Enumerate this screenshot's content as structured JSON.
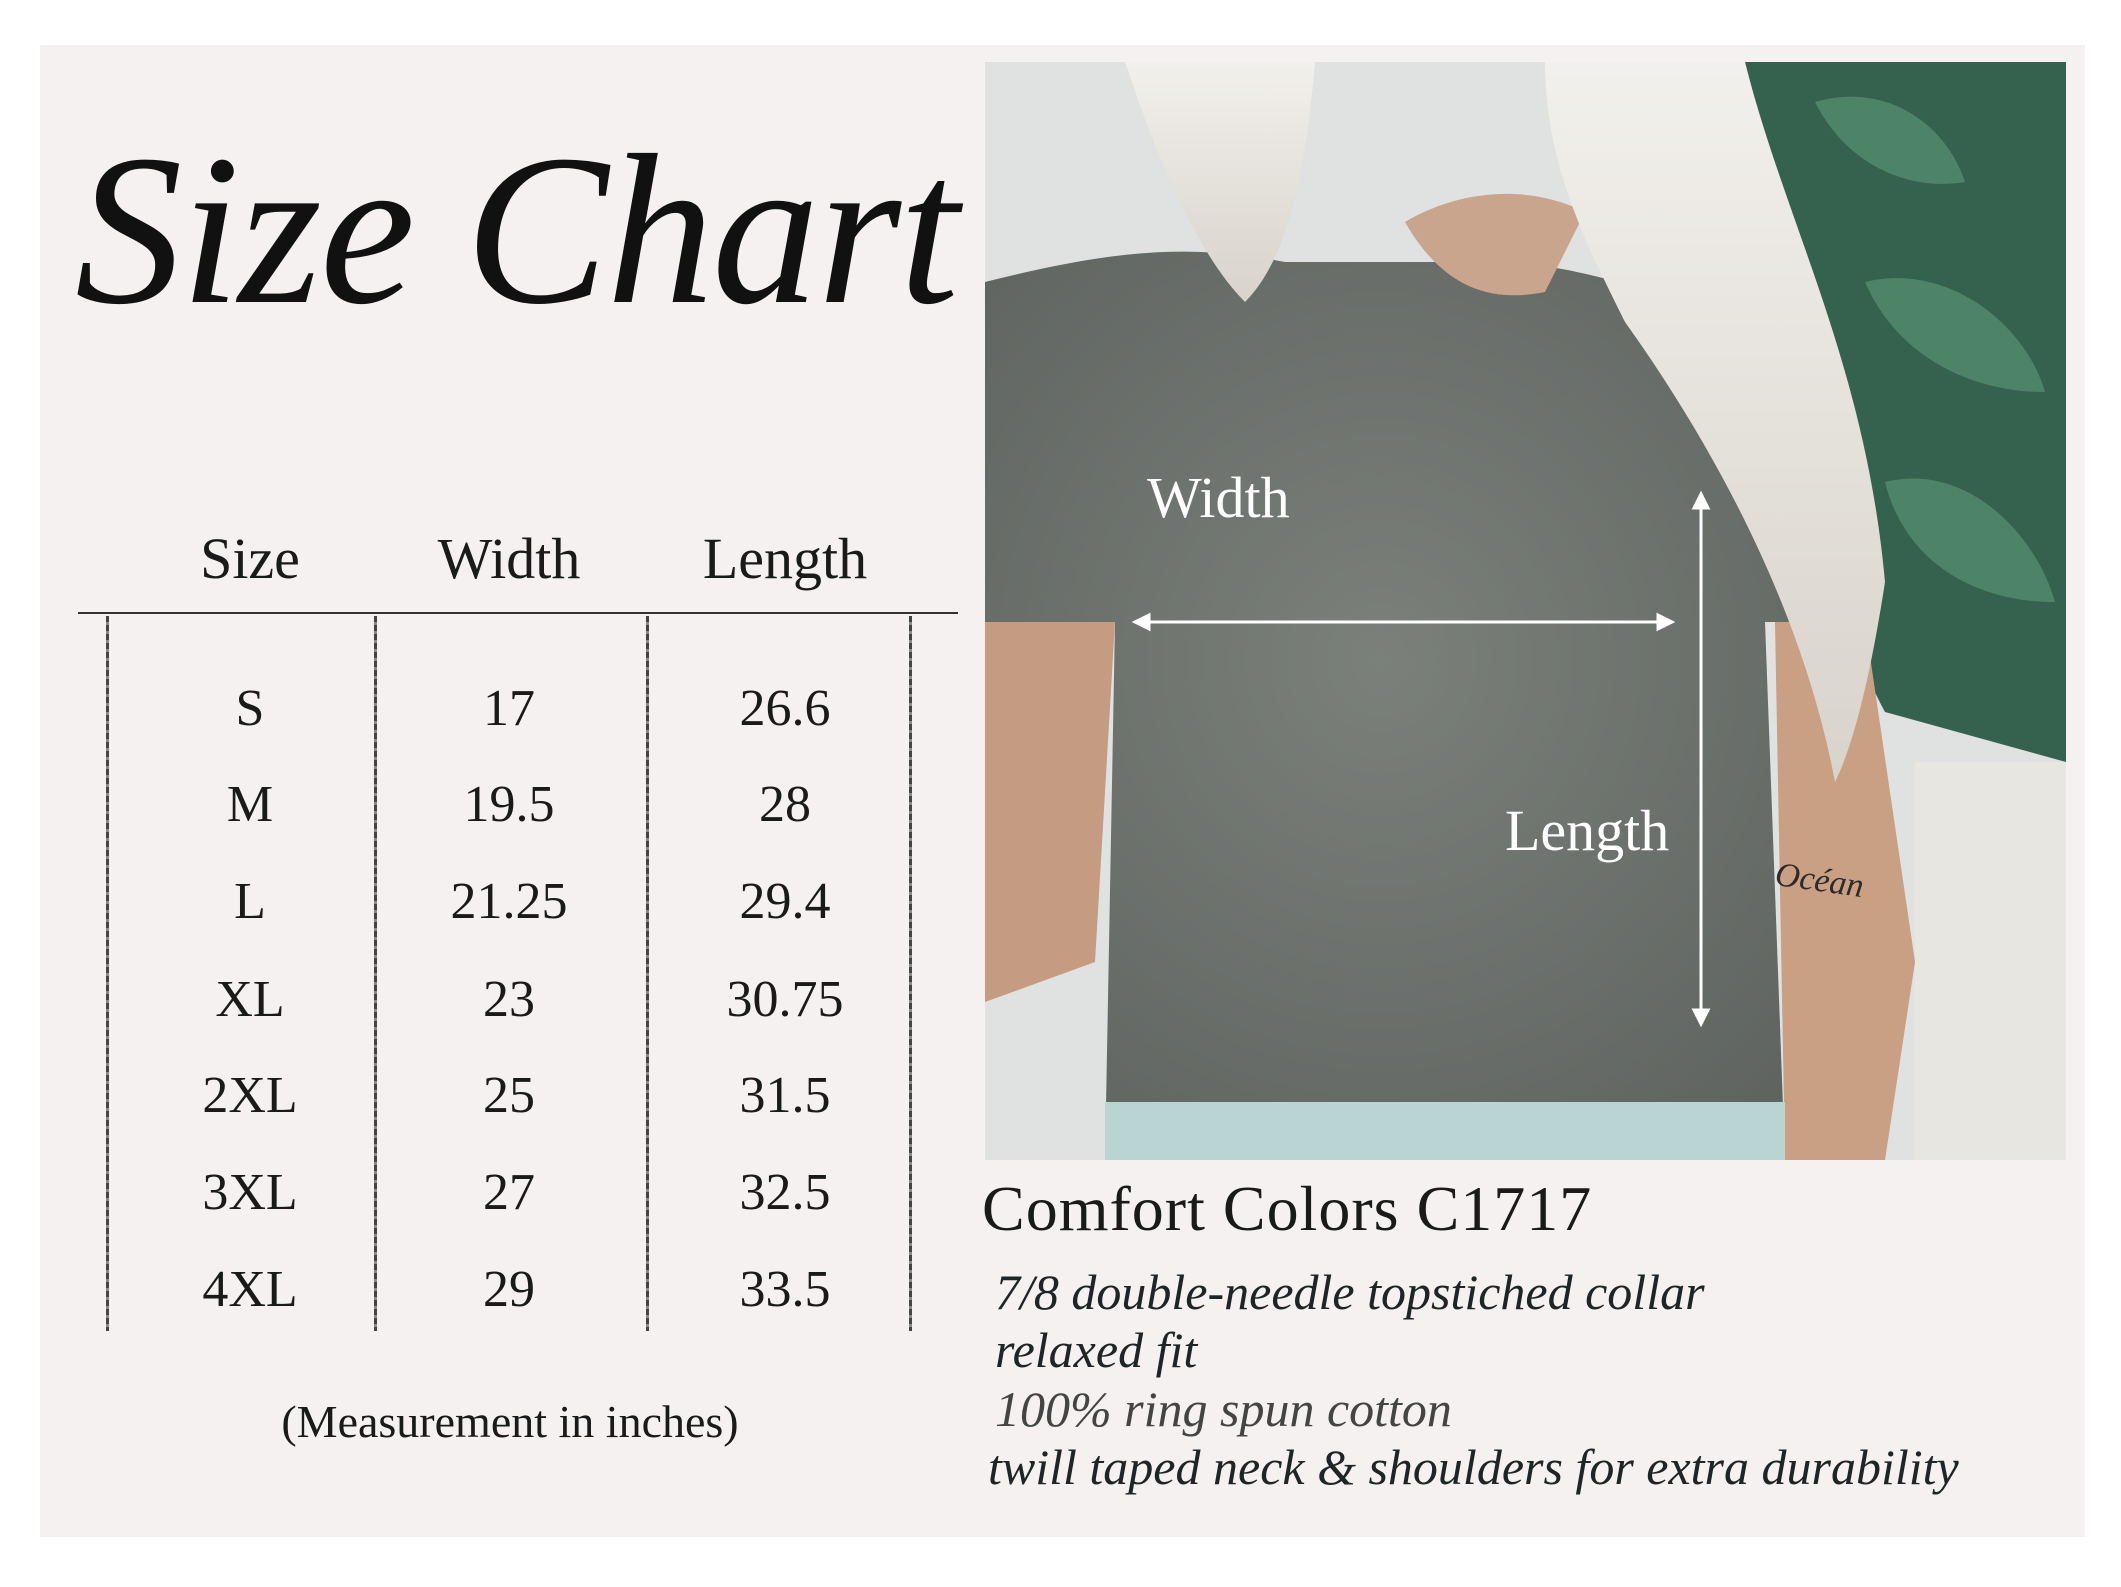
{
  "title": "Size Chart",
  "table": {
    "headers": [
      "Size",
      "Width",
      "Length"
    ],
    "rows": [
      [
        "S",
        "17",
        "26.6"
      ],
      [
        "M",
        "19.5",
        "28"
      ],
      [
        "L",
        "21.25",
        "29.4"
      ],
      [
        "XL",
        "23",
        "30.75"
      ],
      [
        "2XL",
        "25",
        "31.5"
      ],
      [
        "3XL",
        "27",
        "32.5"
      ],
      [
        "4XL",
        "29",
        "33.5"
      ]
    ],
    "note": "(Measurement in inches)"
  },
  "photo": {
    "width_label": "Width",
    "length_label": "Length",
    "tattoo": "Océan"
  },
  "product": {
    "name": "Comfort Colors C1717",
    "features": [
      "7/8 double-needle topstiched collar",
      "relaxed fit",
      "100% ring spun cotton",
      "twill taped neck & shoulders for extra durability"
    ]
  },
  "colors": {
    "background": "#f4f1f0",
    "shirt": "#6f746f",
    "text": "#1a1a1a"
  }
}
